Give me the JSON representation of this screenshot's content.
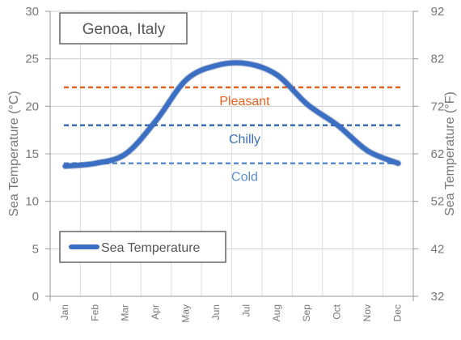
{
  "chart_data": {
    "type": "line",
    "title": "Genoa, Italy",
    "ylabel_left": "Sea Temperature (°C)",
    "ylabel_right": "Sea Temperature (°F)",
    "categories": [
      "Jan",
      "Feb",
      "Mar",
      "Apr",
      "May",
      "Jun",
      "Jul",
      "Aug",
      "Sep",
      "Oct",
      "Nov",
      "Dec"
    ],
    "ylim": [
      0,
      30
    ],
    "yticks_left": [
      "0",
      "5",
      "10",
      "15",
      "20",
      "25",
      "30"
    ],
    "yticks_right": [
      "32",
      "42",
      "52",
      "62",
      "72",
      "82",
      "92"
    ],
    "series": [
      {
        "name": "Sea Temperature",
        "color": "#3a6fc4",
        "values": [
          13.7,
          14.0,
          15.0,
          18.5,
          22.8,
          24.3,
          24.5,
          23.3,
          20.2,
          18.0,
          15.3,
          14.0
        ]
      }
    ],
    "bands": [
      {
        "label": "Pleasant",
        "value": 22,
        "color": "#e8601c"
      },
      {
        "label": "Chilly",
        "value": 18,
        "color": "#3b6fb6"
      },
      {
        "label": "Cold",
        "value": 14,
        "color": "#5b8ed6"
      }
    ],
    "grid": true,
    "legend_position": "bottom-left"
  }
}
